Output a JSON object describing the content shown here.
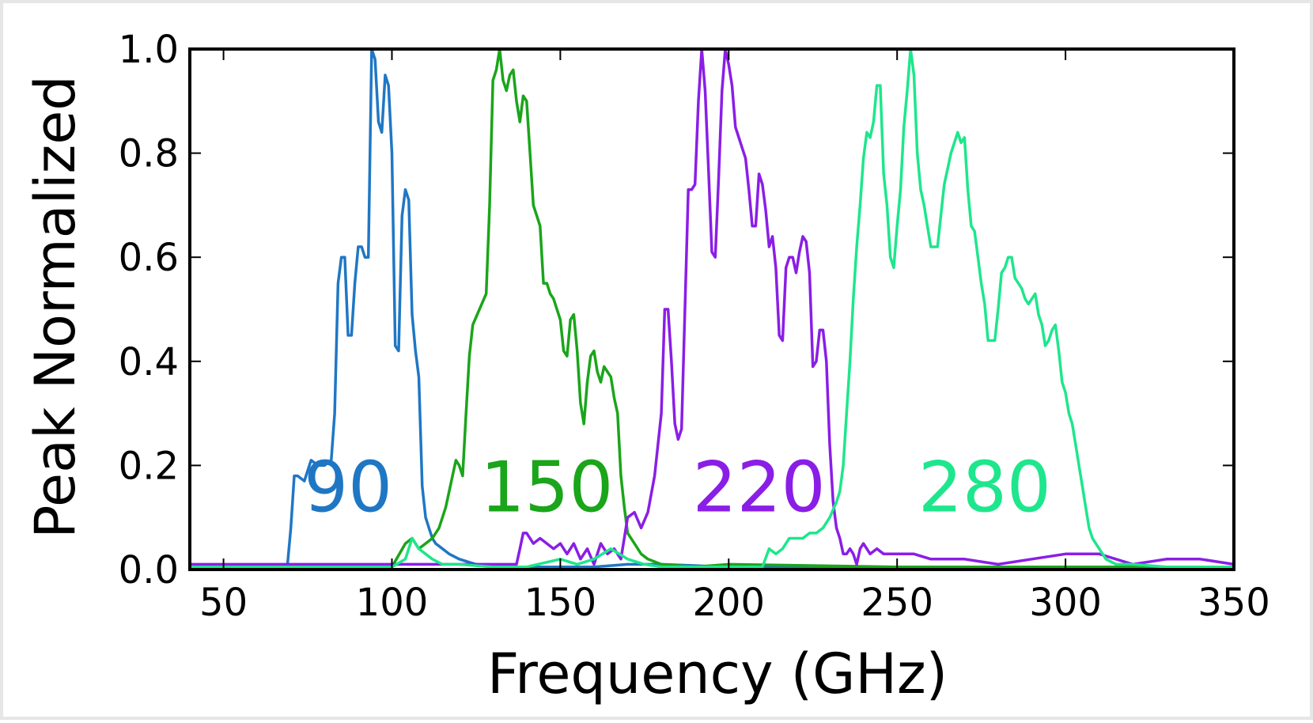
{
  "chart_data": {
    "type": "line",
    "xlabel": "Frequency (GHz)",
    "ylabel": "Peak Normalized",
    "xlim": [
      40,
      350
    ],
    "ylim": [
      0,
      1
    ],
    "xticks": [
      50,
      100,
      150,
      200,
      250,
      300,
      350
    ],
    "xtick_labels": [
      "50",
      "100",
      "150",
      "200",
      "250",
      "300",
      "350"
    ],
    "yticks": [
      0,
      0.2,
      0.4,
      0.6,
      0.8,
      1.0
    ],
    "ytick_labels": [
      "0.0",
      "0.2",
      "0.4",
      "0.6",
      "0.8",
      "1.0"
    ],
    "grid": false,
    "annotations": [
      {
        "text": "90",
        "x": 87,
        "y": 0.16,
        "color": "#1f77c4"
      },
      {
        "text": "150",
        "x": 146,
        "y": 0.16,
        "color": "#1aa51a"
      },
      {
        "text": "220",
        "x": 209,
        "y": 0.16,
        "color": "#8a1ee6"
      },
      {
        "text": "280",
        "x": 276,
        "y": 0.16,
        "color": "#1ee68c"
      }
    ],
    "series": [
      {
        "color": "#1f77c4",
        "x": [
          40,
          50,
          60,
          69,
          70,
          71,
          72,
          74,
          76,
          78,
          80,
          82,
          83,
          84,
          85,
          86,
          87,
          88,
          89,
          90,
          91,
          92,
          93,
          94,
          95,
          96,
          97,
          98,
          99,
          100,
          101,
          102,
          103,
          104,
          105,
          106,
          107,
          108,
          109,
          110,
          111,
          112,
          113,
          115,
          117,
          120,
          125,
          130,
          140,
          150,
          160,
          170,
          180,
          200,
          250,
          300,
          350
        ],
        "y": [
          0.005,
          0.005,
          0.005,
          0.01,
          0.08,
          0.18,
          0.18,
          0.17,
          0.21,
          0.2,
          0.2,
          0.21,
          0.3,
          0.55,
          0.6,
          0.6,
          0.45,
          0.45,
          0.55,
          0.62,
          0.62,
          0.6,
          0.6,
          1.0,
          0.98,
          0.86,
          0.84,
          0.95,
          0.93,
          0.8,
          0.43,
          0.42,
          0.68,
          0.73,
          0.71,
          0.49,
          0.42,
          0.37,
          0.16,
          0.1,
          0.08,
          0.06,
          0.05,
          0.04,
          0.03,
          0.02,
          0.01,
          0.005,
          0.005,
          0.005,
          0.005,
          0.01,
          0.01,
          0.005,
          0.003,
          0.003,
          0.003
        ]
      },
      {
        "color": "#1aa51a",
        "x": [
          40,
          60,
          80,
          100,
          104,
          106,
          108,
          110,
          112,
          114,
          116,
          118,
          119,
          120,
          121,
          122,
          123,
          124,
          126,
          128,
          129,
          130,
          131,
          132,
          133,
          134,
          135,
          136,
          137,
          138,
          139,
          140,
          141,
          142,
          143,
          144,
          145,
          146,
          147,
          148,
          149,
          150,
          151,
          152,
          153,
          154,
          155,
          156,
          157,
          158,
          159,
          160,
          161,
          162,
          163,
          164,
          165,
          166,
          167,
          168,
          169,
          170,
          172,
          174,
          176,
          180,
          190,
          200,
          250,
          300,
          310,
          350
        ],
        "y": [
          0.005,
          0.005,
          0.005,
          0.005,
          0.05,
          0.06,
          0.04,
          0.05,
          0.06,
          0.08,
          0.12,
          0.18,
          0.21,
          0.2,
          0.18,
          0.3,
          0.41,
          0.47,
          0.5,
          0.53,
          0.7,
          0.94,
          0.96,
          1.0,
          0.94,
          0.92,
          0.95,
          0.96,
          0.9,
          0.86,
          0.91,
          0.9,
          0.8,
          0.7,
          0.68,
          0.66,
          0.55,
          0.55,
          0.53,
          0.52,
          0.5,
          0.48,
          0.42,
          0.41,
          0.48,
          0.49,
          0.42,
          0.32,
          0.28,
          0.36,
          0.41,
          0.42,
          0.38,
          0.36,
          0.39,
          0.38,
          0.37,
          0.33,
          0.3,
          0.18,
          0.12,
          0.07,
          0.05,
          0.03,
          0.02,
          0.01,
          0.005,
          0.01,
          0.005,
          0.005,
          0.005,
          0.005
        ]
      },
      {
        "color": "#8a1ee6",
        "x": [
          40,
          60,
          80,
          100,
          110,
          130,
          137,
          138,
          139,
          140,
          142,
          144,
          146,
          148,
          150,
          152,
          154,
          156,
          158,
          160,
          162,
          164,
          166,
          168,
          170,
          172,
          174,
          176,
          178,
          180,
          181,
          182,
          183,
          184,
          185,
          186,
          188,
          189,
          190,
          191,
          192,
          193,
          194,
          195,
          196,
          197,
          198,
          199,
          200,
          201,
          202,
          203,
          204,
          205,
          206,
          207,
          208,
          209,
          210,
          211,
          212,
          213,
          214,
          215,
          216,
          217,
          218,
          219,
          220,
          221,
          222,
          223,
          224,
          225,
          226,
          227,
          228,
          229,
          230,
          231,
          232,
          233,
          234,
          235,
          236,
          237,
          238,
          239,
          240,
          242,
          244,
          246,
          250,
          255,
          260,
          265,
          270,
          280,
          290,
          300,
          310,
          320,
          330,
          340,
          350
        ],
        "y": [
          0.01,
          0.01,
          0.01,
          0.01,
          0.01,
          0.01,
          0.01,
          0.04,
          0.07,
          0.07,
          0.05,
          0.06,
          0.05,
          0.04,
          0.05,
          0.03,
          0.05,
          0.02,
          0.04,
          0.01,
          0.05,
          0.03,
          0.04,
          0.02,
          0.1,
          0.11,
          0.08,
          0.11,
          0.18,
          0.3,
          0.5,
          0.5,
          0.4,
          0.28,
          0.25,
          0.27,
          0.73,
          0.73,
          0.74,
          0.9,
          1.0,
          0.92,
          0.77,
          0.61,
          0.6,
          0.75,
          0.92,
          1.0,
          0.97,
          0.93,
          0.85,
          0.83,
          0.81,
          0.79,
          0.73,
          0.66,
          0.66,
          0.76,
          0.74,
          0.69,
          0.62,
          0.64,
          0.58,
          0.45,
          0.44,
          0.58,
          0.6,
          0.6,
          0.57,
          0.61,
          0.64,
          0.63,
          0.57,
          0.39,
          0.4,
          0.46,
          0.46,
          0.4,
          0.24,
          0.13,
          0.08,
          0.06,
          0.03,
          0.03,
          0.04,
          0.03,
          0.01,
          0.04,
          0.05,
          0.03,
          0.04,
          0.03,
          0.03,
          0.03,
          0.02,
          0.02,
          0.02,
          0.01,
          0.02,
          0.03,
          0.03,
          0.01,
          0.02,
          0.02,
          0.01
        ]
      },
      {
        "color": "#1ee68c",
        "x": [
          40,
          60,
          80,
          100,
          104,
          106,
          108,
          110,
          112,
          115,
          120,
          130,
          140,
          150,
          155,
          160,
          165,
          170,
          175,
          180,
          190,
          200,
          210,
          212,
          214,
          216,
          218,
          220,
          222,
          224,
          226,
          228,
          230,
          232,
          233,
          234,
          235,
          236,
          237,
          238,
          239,
          240,
          241,
          242,
          243,
          244,
          245,
          246,
          247,
          248,
          249,
          250,
          251,
          252,
          253,
          254,
          255,
          256,
          257,
          258,
          259,
          260,
          261,
          262,
          263,
          264,
          265,
          266,
          267,
          268,
          269,
          270,
          271,
          272,
          273,
          274,
          275,
          276,
          277,
          278,
          279,
          280,
          281,
          282,
          283,
          284,
          285,
          286,
          287,
          288,
          289,
          290,
          291,
          292,
          293,
          294,
          295,
          296,
          297,
          298,
          299,
          300,
          301,
          302,
          303,
          304,
          305,
          306,
          307,
          308,
          309,
          310,
          312,
          315,
          320,
          330,
          340,
          350
        ],
        "y": [
          0.005,
          0.005,
          0.005,
          0.005,
          0.02,
          0.06,
          0.04,
          0.03,
          0.02,
          0.01,
          0.01,
          0.005,
          0.005,
          0.02,
          0.01,
          0.02,
          0.04,
          0.02,
          0.01,
          0.005,
          0.005,
          0.005,
          0.005,
          0.04,
          0.03,
          0.04,
          0.06,
          0.06,
          0.06,
          0.07,
          0.07,
          0.08,
          0.1,
          0.13,
          0.15,
          0.2,
          0.3,
          0.4,
          0.52,
          0.62,
          0.7,
          0.79,
          0.84,
          0.83,
          0.86,
          0.93,
          0.93,
          0.76,
          0.7,
          0.6,
          0.58,
          0.66,
          0.73,
          0.85,
          0.92,
          1.0,
          0.95,
          0.8,
          0.73,
          0.7,
          0.66,
          0.62,
          0.62,
          0.62,
          0.68,
          0.74,
          0.77,
          0.8,
          0.82,
          0.84,
          0.82,
          0.83,
          0.73,
          0.66,
          0.65,
          0.6,
          0.55,
          0.51,
          0.44,
          0.44,
          0.44,
          0.5,
          0.57,
          0.58,
          0.6,
          0.6,
          0.56,
          0.55,
          0.54,
          0.52,
          0.51,
          0.52,
          0.53,
          0.49,
          0.47,
          0.43,
          0.44,
          0.46,
          0.47,
          0.42,
          0.36,
          0.34,
          0.3,
          0.28,
          0.24,
          0.2,
          0.16,
          0.12,
          0.08,
          0.06,
          0.05,
          0.04,
          0.02,
          0.01,
          0.01,
          0.005,
          0.005,
          0.005
        ]
      }
    ]
  }
}
